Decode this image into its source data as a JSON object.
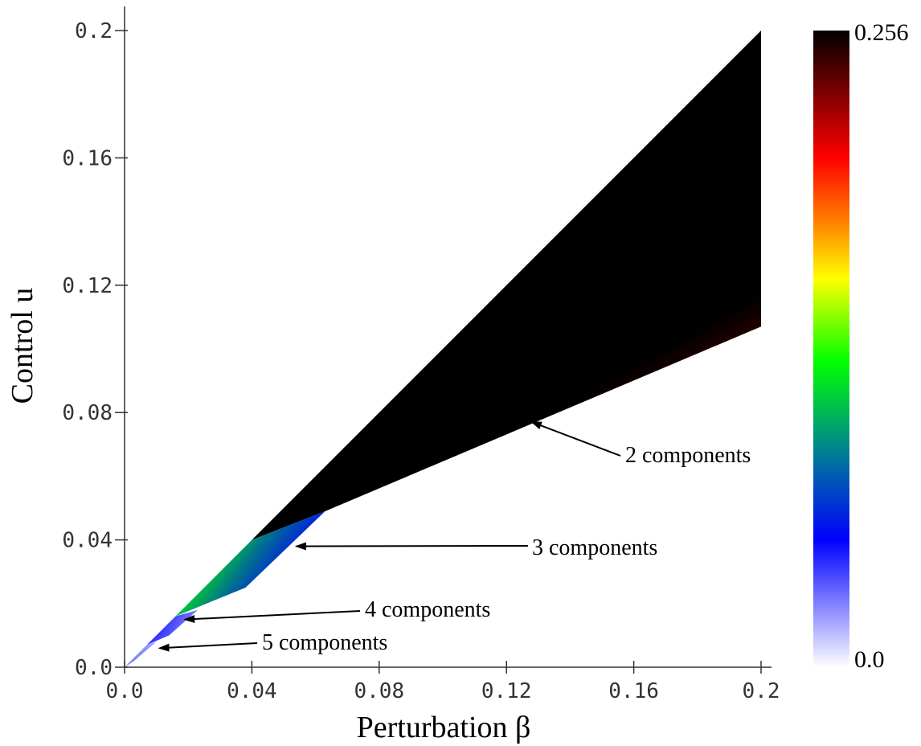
{
  "chart_data": {
    "type": "heatmap",
    "xlabel": "Perturbation β",
    "ylabel": "Control u",
    "xlim": [
      0,
      0.2
    ],
    "ylim": [
      0,
      0.2
    ],
    "x_ticks": [
      "0.0",
      "0.04",
      "0.08",
      "0.12",
      "0.16",
      "0.2"
    ],
    "y_ticks": [
      "0.0",
      "0.04",
      "0.08",
      "0.12",
      "0.16",
      "0.2"
    ],
    "x_tick_values": [
      0,
      0.04,
      0.08,
      0.12,
      0.16,
      0.2
    ],
    "y_tick_values": [
      0,
      0.04,
      0.08,
      0.12,
      0.16,
      0.2
    ],
    "colorbar": {
      "min_label": "0.0",
      "max_label": "0.256",
      "min": 0.0,
      "max": 0.256,
      "colors": [
        "#ffffff",
        "#0000ff",
        "#008a8a",
        "#00ff00",
        "#ffff00",
        "#ff8000",
        "#ff0000",
        "#800000",
        "#000000"
      ]
    },
    "regions": [
      {
        "components": 2,
        "polygon": [
          [
            0.04,
            0.04
          ],
          [
            0.2,
            0.2
          ],
          [
            0.2,
            0.107
          ],
          [
            0.063,
            0.049
          ]
        ]
      },
      {
        "components": 3,
        "polygon": [
          [
            0.016,
            0.016
          ],
          [
            0.04,
            0.04
          ],
          [
            0.063,
            0.049
          ],
          [
            0.038,
            0.025
          ]
        ]
      },
      {
        "components": 4,
        "polygon": [
          [
            0.007,
            0.007
          ],
          [
            0.016,
            0.016
          ],
          [
            0.023,
            0.018
          ],
          [
            0.014,
            0.01
          ]
        ]
      },
      {
        "components": 5,
        "polygon": [
          [
            0.0,
            0.0
          ],
          [
            0.007,
            0.007
          ],
          [
            0.01,
            0.008
          ],
          [
            0.003,
            0.002
          ]
        ]
      }
    ],
    "annotations": [
      {
        "text": "2 components",
        "target": [
          0.128,
          0.077
        ]
      },
      {
        "text": "3 components",
        "target": [
          0.054,
          0.038
        ]
      },
      {
        "text": "4 components",
        "target": [
          0.019,
          0.015
        ]
      },
      {
        "text": "5 components",
        "target": [
          0.011,
          0.006
        ]
      }
    ]
  }
}
